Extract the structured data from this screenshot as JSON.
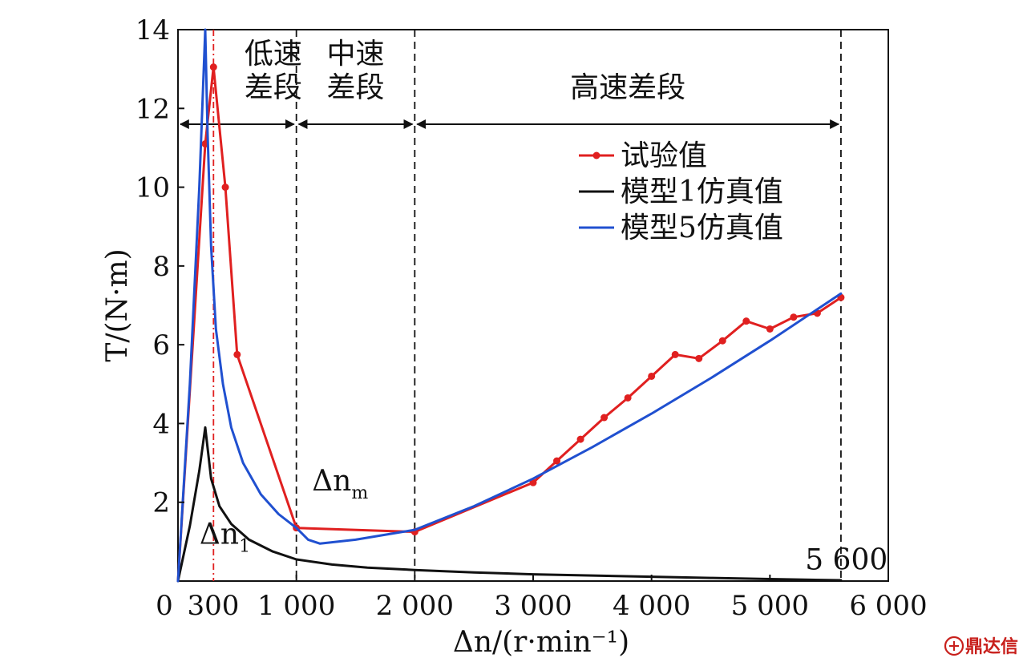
{
  "chart_data": {
    "type": "line",
    "xlabel": "Δn/(r·min⁻¹)",
    "ylabel": "T/(N·m)",
    "xlim": [
      0,
      6000
    ],
    "ylim": [
      0,
      14
    ],
    "x_tick_labels": [
      {
        "value": 0,
        "label": "0"
      },
      {
        "value": 300,
        "label": "300"
      },
      {
        "value": 1000,
        "label": "1 000"
      },
      {
        "value": 2000,
        "label": "2 000"
      },
      {
        "value": 3000,
        "label": "3 000"
      },
      {
        "value": 4000,
        "label": "4 000"
      },
      {
        "value": 5000,
        "label": "5 000"
      },
      {
        "value": 6000,
        "label": "6 000"
      }
    ],
    "y_tick_labels": [
      {
        "value": 2,
        "label": "2"
      },
      {
        "value": 4,
        "label": "4"
      },
      {
        "value": 6,
        "label": "6"
      },
      {
        "value": 8,
        "label": "8"
      },
      {
        "value": 10,
        "label": "10"
      },
      {
        "value": 12,
        "label": "12"
      },
      {
        "value": 14,
        "label": "14"
      }
    ],
    "grid": false,
    "legend_position": "top-right",
    "series": [
      {
        "name": "试验值",
        "color": "#e02020",
        "markers": true,
        "points": [
          [
            0,
            0
          ],
          [
            230,
            11.1
          ],
          [
            300,
            13.05
          ],
          [
            400,
            10.0
          ],
          [
            500,
            5.75
          ],
          [
            1000,
            1.35
          ],
          [
            2000,
            1.25
          ],
          [
            3000,
            2.5
          ],
          [
            3200,
            3.05
          ],
          [
            3400,
            3.6
          ],
          [
            3600,
            4.15
          ],
          [
            3800,
            4.65
          ],
          [
            4000,
            5.2
          ],
          [
            4200,
            5.75
          ],
          [
            4400,
            5.65
          ],
          [
            4600,
            6.1
          ],
          [
            4800,
            6.6
          ],
          [
            5000,
            6.4
          ],
          [
            5200,
            6.7
          ],
          [
            5400,
            6.8
          ],
          [
            5600,
            7.2
          ]
        ]
      },
      {
        "name": "模型1仿真值",
        "color": "#111111",
        "markers": false,
        "points": [
          [
            0,
            0
          ],
          [
            100,
            1.4
          ],
          [
            180,
            2.8
          ],
          [
            230,
            3.9
          ],
          [
            280,
            2.6
          ],
          [
            350,
            1.9
          ],
          [
            450,
            1.45
          ],
          [
            600,
            1.05
          ],
          [
            800,
            0.75
          ],
          [
            1000,
            0.55
          ],
          [
            1300,
            0.42
          ],
          [
            1600,
            0.34
          ],
          [
            2000,
            0.28
          ],
          [
            2500,
            0.22
          ],
          [
            3000,
            0.17
          ],
          [
            3500,
            0.14
          ],
          [
            4000,
            0.11
          ],
          [
            4500,
            0.08
          ],
          [
            5000,
            0.05
          ],
          [
            5600,
            0.02
          ]
        ]
      },
      {
        "name": "模型5仿真值",
        "color": "#2050d0",
        "markers": false,
        "points": [
          [
            0,
            0
          ],
          [
            100,
            5.0
          ],
          [
            180,
            10.0
          ],
          [
            230,
            14.0
          ],
          [
            250,
            11.4
          ],
          [
            280,
            8.5
          ],
          [
            320,
            6.4
          ],
          [
            380,
            5.0
          ],
          [
            450,
            3.9
          ],
          [
            550,
            3.0
          ],
          [
            700,
            2.2
          ],
          [
            850,
            1.7
          ],
          [
            1000,
            1.35
          ],
          [
            1100,
            1.05
          ],
          [
            1200,
            0.95
          ],
          [
            1500,
            1.05
          ],
          [
            1800,
            1.2
          ],
          [
            2000,
            1.3
          ],
          [
            2500,
            1.9
          ],
          [
            3000,
            2.6
          ],
          [
            3500,
            3.4
          ],
          [
            4000,
            4.25
          ],
          [
            4500,
            5.15
          ],
          [
            5000,
            6.1
          ],
          [
            5600,
            7.3
          ]
        ]
      }
    ],
    "vertical_lines": [
      {
        "x": 300,
        "color": "#e02020",
        "style": "dash-dot"
      },
      {
        "x": 1000,
        "color": "#111111",
        "style": "dashed"
      },
      {
        "x": 2000,
        "color": "#111111",
        "style": "dashed"
      },
      {
        "x": 5600,
        "color": "#111111",
        "style": "dashed"
      }
    ],
    "regions": [
      {
        "label_lines": [
          "低速",
          "差段"
        ],
        "x_start": 0,
        "x_end": 1000
      },
      {
        "label_lines": [
          "中速",
          "差段"
        ],
        "x_start": 1000,
        "x_end": 2000
      },
      {
        "label_lines": [
          "高速差段"
        ],
        "x_start": 2000,
        "x_end": 5600
      }
    ],
    "region_arrow_y": 11.6,
    "annotations": [
      {
        "id": "dn1",
        "base": "Δn",
        "sub": "1",
        "x": 250,
        "y": 0.95
      },
      {
        "id": "dnm",
        "base": "Δn",
        "sub": "m",
        "x": 1200,
        "y": 2.3
      },
      {
        "id": "x5600",
        "text": "5 600",
        "x": 5680,
        "y": 0.25
      }
    ]
  },
  "watermark": {
    "text": "鼎达信",
    "color": "#c8201c"
  }
}
